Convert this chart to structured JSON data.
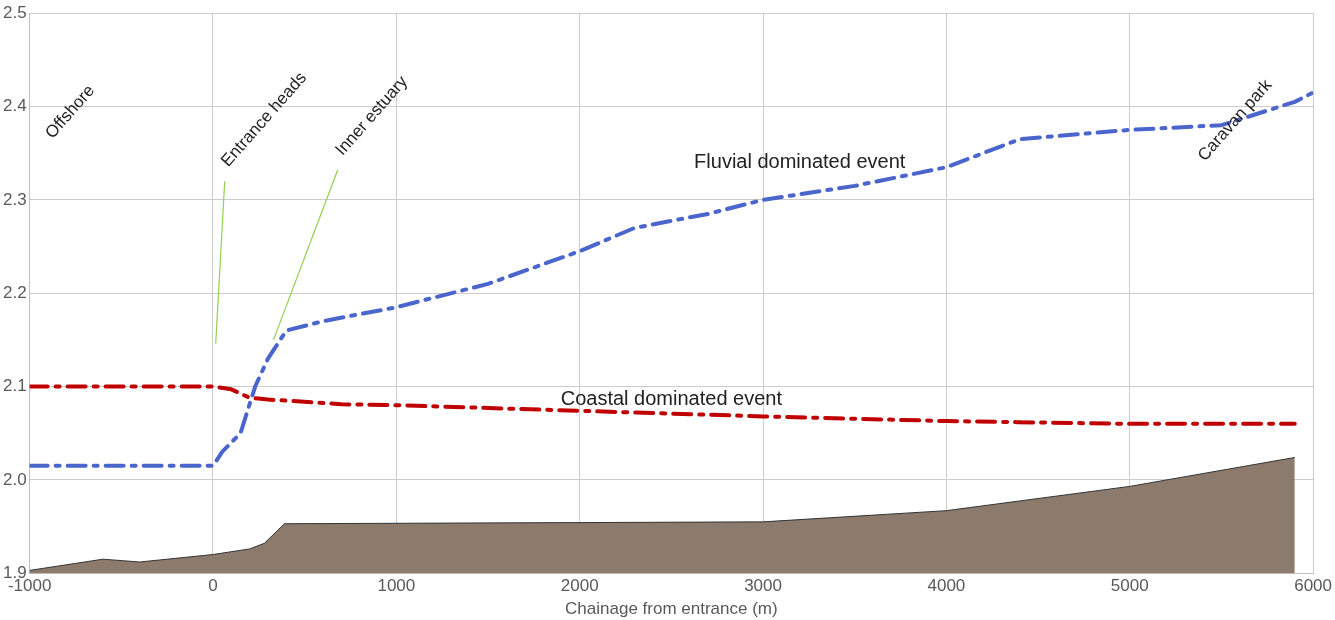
{
  "chart_data": {
    "type": "line",
    "xlabel": "Chainage from entrance (m)",
    "xlim": [
      -1000,
      6000
    ],
    "xticks": [
      -1000,
      0,
      1000,
      2000,
      3000,
      4000,
      5000,
      6000
    ],
    "ylim": [
      1.9,
      2.5
    ],
    "yticks": [
      1.9,
      {
        "value": 2,
        "label": "2.0"
      },
      2.1,
      2.2,
      2.3,
      2.4,
      2.5
    ],
    "grid": true,
    "legend": false,
    "marker": "none",
    "line_style": "dashed",
    "series": [
      {
        "type": "area",
        "color": "#8c7b6d",
        "x": [
          -1000,
          -600,
          -400,
          0,
          200,
          280,
          390,
          3000,
          4000,
          5000,
          5900
        ],
        "values": [
          1.903,
          1.915,
          1.912,
          1.92,
          1.926,
          1.932,
          1.953,
          1.955,
          1.967,
          1.993,
          2.024
        ]
      },
      {
        "name": "Coastal dominated event",
        "color": "#c00000",
        "x": [
          -1000,
          0,
          100,
          200,
          300,
          400,
          700,
          1000,
          2000,
          3000,
          4000,
          5000,
          5900
        ],
        "values": [
          2.1,
          2.1,
          2.097,
          2.088,
          2.086,
          2.085,
          2.081,
          2.08,
          2.074,
          2.068,
          2.063,
          2.06,
          2.06
        ]
      },
      {
        "name": "Fluvial dominated event",
        "color": "#4a66cc",
        "x": [
          -1000,
          0,
          50,
          150,
          230,
          300,
          400,
          600,
          1000,
          1500,
          2000,
          2300,
          2700,
          3000,
          3500,
          4000,
          4400,
          5000,
          5500,
          5900,
          6000
        ],
        "values": [
          2.015,
          2.015,
          2.03,
          2.05,
          2.1,
          2.13,
          2.16,
          2.17,
          2.185,
          2.21,
          2.245,
          2.27,
          2.285,
          2.3,
          2.315,
          2.335,
          2.365,
          2.375,
          2.38,
          2.405,
          2.415
        ]
      }
    ],
    "annotations": [
      "Offshore",
      "Entrance heads",
      {
        "text": "Inner estuary",
        "x": 330,
        "y": 2.15
      },
      "Caravan park"
    ]
  }
}
